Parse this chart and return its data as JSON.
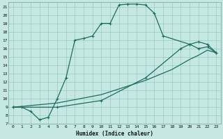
{
  "xlabel": "Humidex (Indice chaleur)",
  "bg_color": "#c5e8e3",
  "grid_color": "#9fcec8",
  "line_color": "#1e6b62",
  "xlim": [
    -0.5,
    23.5
  ],
  "ylim": [
    7,
    21.5
  ],
  "xticks": [
    0,
    1,
    2,
    3,
    4,
    5,
    6,
    7,
    8,
    9,
    10,
    11,
    12,
    13,
    14,
    15,
    16,
    17,
    18,
    19,
    20,
    21,
    22,
    23
  ],
  "yticks": [
    7,
    8,
    9,
    10,
    11,
    12,
    13,
    14,
    15,
    16,
    17,
    18,
    19,
    20,
    21
  ],
  "curve1_x": [
    0,
    1,
    2,
    3,
    4,
    5,
    6,
    7,
    8,
    9,
    10,
    11,
    12,
    13,
    14,
    15,
    16,
    17,
    20,
    21,
    22,
    23
  ],
  "curve1_y": [
    9.0,
    9.0,
    8.5,
    7.5,
    7.8,
    10.0,
    12.5,
    17.0,
    17.2,
    17.5,
    19.0,
    19.0,
    21.2,
    21.3,
    21.3,
    21.2,
    20.2,
    17.5,
    16.5,
    16.0,
    16.2,
    15.5
  ],
  "curve2_x": [
    0,
    5,
    10,
    15,
    18,
    20,
    21,
    22,
    23
  ],
  "curve2_y": [
    9.0,
    9.5,
    10.5,
    12.2,
    13.5,
    14.7,
    15.2,
    15.8,
    15.5
  ],
  "curve3_x": [
    0,
    5,
    10,
    15,
    19,
    20,
    21,
    22,
    23
  ],
  "curve3_y": [
    9.0,
    9.0,
    9.8,
    12.5,
    16.0,
    16.5,
    16.8,
    16.5,
    15.5
  ]
}
